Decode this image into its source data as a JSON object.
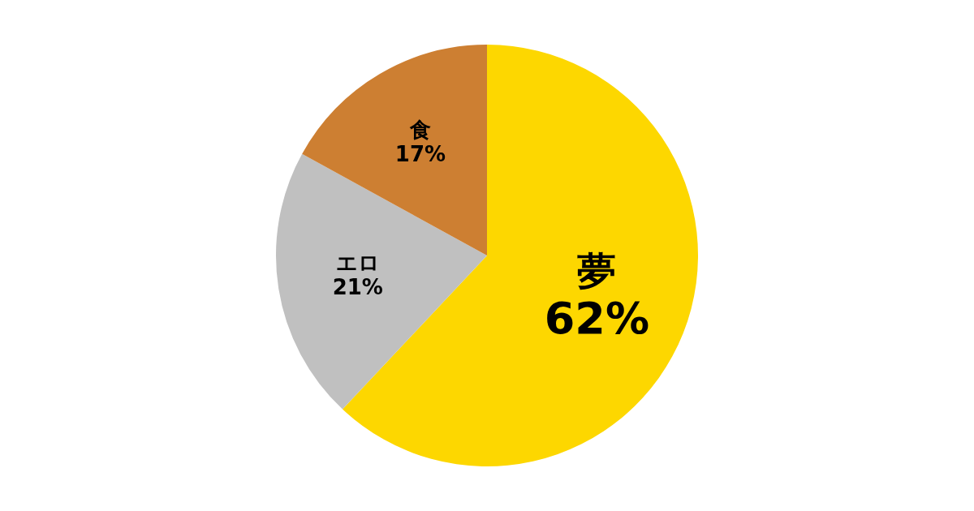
{
  "chart_data": {
    "type": "pie",
    "categories": [
      "夢",
      "エロ",
      "食"
    ],
    "values": [
      62,
      21,
      17
    ],
    "colors": [
      "#fdd700",
      "#c0c0c0",
      "#cd7f32"
    ],
    "value_labels": [
      "62%",
      "21%",
      "17%"
    ],
    "legend": false
  }
}
